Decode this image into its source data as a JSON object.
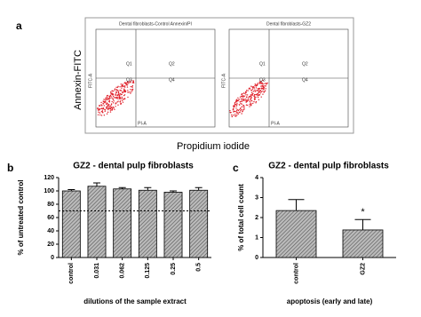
{
  "figure_a": {
    "panel_label": "a",
    "plots": [
      {
        "title": "Dental fibroblasts-Control Annexin/PI",
        "y_axis": "FITC-A",
        "x_axis": "PI-A",
        "quadrants": [
          "Q1",
          "Q2",
          "Q3",
          "Q4"
        ]
      },
      {
        "title": "Dental fibroblasts-GZ2",
        "y_axis": "FITC-A",
        "x_axis": "PI-A",
        "quadrants": [
          "Q1",
          "Q2",
          "Q3",
          "Q4"
        ]
      }
    ],
    "y_label": "Annexin-FITC",
    "x_label": "Propidium iodide"
  },
  "chart_data": [
    {
      "type": "bar",
      "panel_label": "b",
      "title": "GZ2 - dental pulp fibroblasts",
      "y_label": "% of untreated control",
      "x_label": "dilutions of the sample extract",
      "categories": [
        "control",
        "0.031",
        "0.062",
        "0.125",
        "0.25",
        "0.5"
      ],
      "values": [
        100,
        107,
        103,
        101,
        98,
        101
      ],
      "errors": [
        2,
        5,
        2,
        4,
        2,
        4
      ],
      "reference_line": 70,
      "ylim": [
        0,
        120
      ],
      "yticks": [
        0,
        20,
        40,
        60,
        80,
        100,
        120
      ]
    },
    {
      "type": "bar",
      "panel_label": "c",
      "title": "GZ2 - dental pulp fibroblasts",
      "y_label": "% of total cell count",
      "x_label": "apoptosis (early and late)",
      "categories": [
        "control",
        "GZ2"
      ],
      "values": [
        2.35,
        1.38
      ],
      "errors": [
        0.55,
        0.52
      ],
      "annotation": "*",
      "ylim": [
        0,
        4
      ],
      "yticks": [
        0,
        1,
        2,
        3,
        4
      ]
    }
  ]
}
